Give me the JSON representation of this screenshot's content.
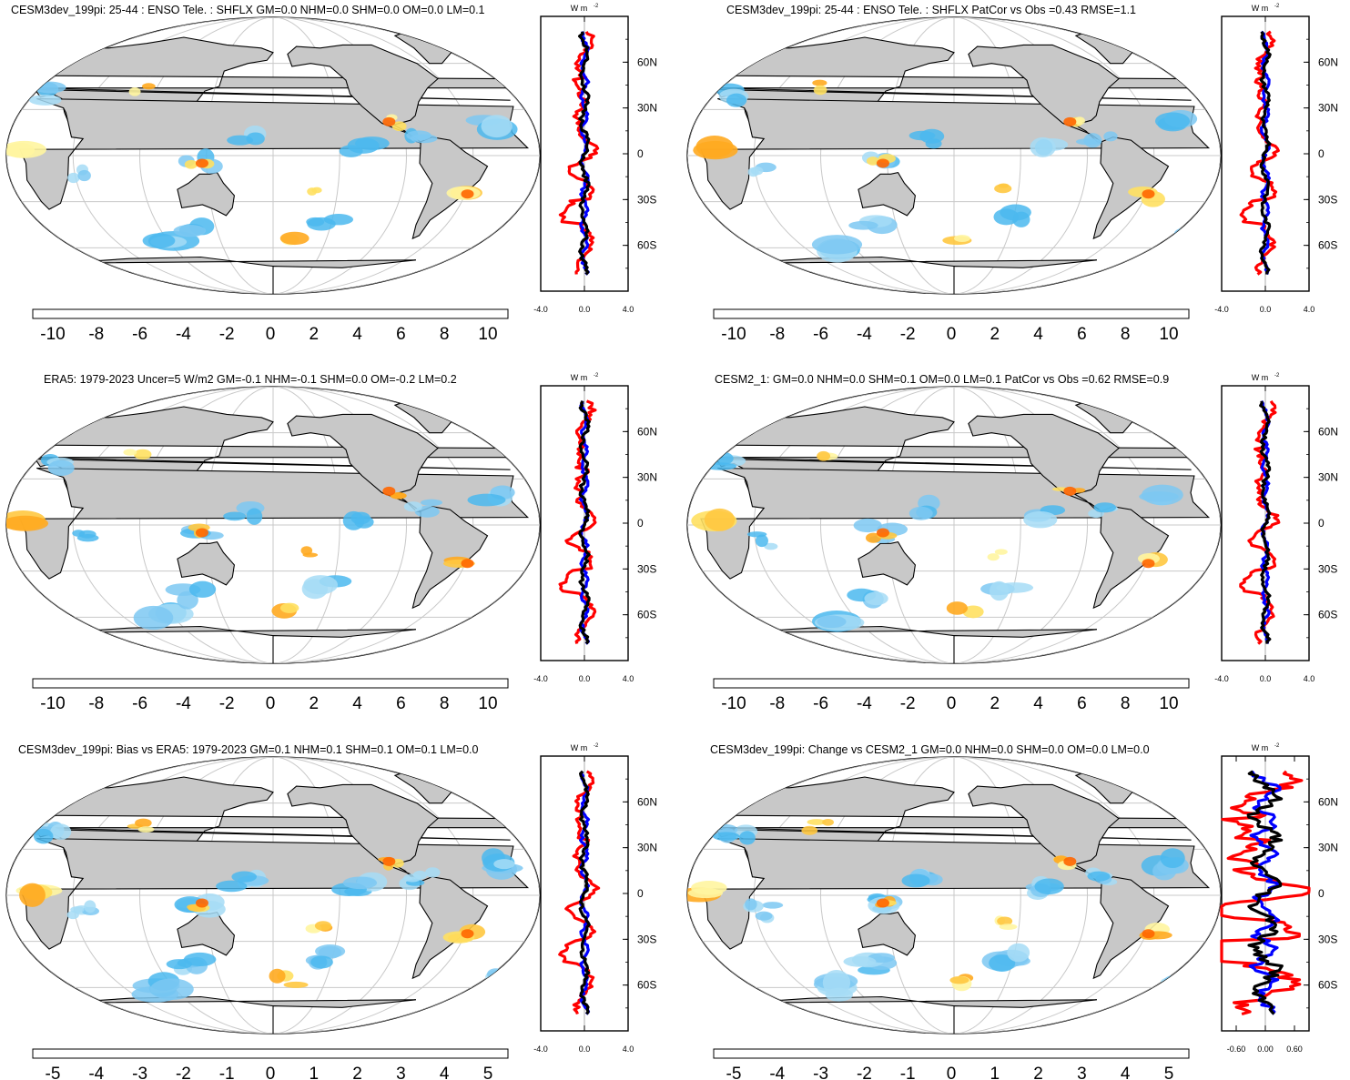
{
  "colors": {
    "land": "#c8c8c8",
    "ocean": "#ffffff",
    "grid": "#c8c8c8",
    "zonal_lines": [
      "#ff0000",
      "#0000ff",
      "#000000"
    ],
    "full_scale": [
      "#0000ff",
      "#1f3fe0",
      "#2e5fd9",
      "#3b7fd6",
      "#2fa3e6",
      "#4bb8ef",
      "#7cc8f2",
      "#a6dcf6",
      "#ffffff",
      "#ffffff",
      "#fff5a0",
      "#ffe060",
      "#ffc840",
      "#ffaa20",
      "#ff8800",
      "#ff6600",
      "#f03a00",
      "#e01010",
      "#c00000"
    ]
  },
  "chart_data": [
    {
      "type": "map",
      "title": "CESM3dev_199pi: 25-44 : ENSO Tele. : SHFLX GM=0.0 NHM=0.0 SHM=0.0 OM=0.0 LM=0.1",
      "colorbar_ticks": [
        "-10",
        "-8",
        "-6",
        "-4",
        "-2",
        "0",
        "2",
        "4",
        "6",
        "8",
        "10"
      ],
      "zonal": {
        "units": "W m",
        "units_exp": "-2",
        "xlim": [
          -4,
          4
        ],
        "xticks": [
          "-4.0",
          "0.0",
          "4.0"
        ],
        "lat_ticks": [
          "60N",
          "30N",
          "0",
          "30S",
          "60S"
        ]
      }
    },
    {
      "type": "map",
      "title": "CESM3dev_199pi: 25-44 : ENSO Tele. : SHFLX PatCor vs Obs =0.43 RMSE=1.1",
      "colorbar_ticks": [
        "-10",
        "-8",
        "-6",
        "-4",
        "-2",
        "0",
        "2",
        "4",
        "6",
        "8",
        "10"
      ],
      "zonal": {
        "units": "W m",
        "units_exp": "-2",
        "xlim": [
          -4,
          4
        ],
        "xticks": [
          "-4.0",
          "0.0",
          "4.0"
        ],
        "lat_ticks": [
          "60N",
          "30N",
          "0",
          "30S",
          "60S"
        ]
      }
    },
    {
      "type": "map",
      "title": "ERA5: 1979-2023 Uncer=5 W/m2 GM=-0.1 NHM=-0.1 SHM=0.0 OM=-0.2 LM=0.2",
      "colorbar_ticks": [
        "-10",
        "-8",
        "-6",
        "-4",
        "-2",
        "0",
        "2",
        "4",
        "6",
        "8",
        "10"
      ],
      "zonal": {
        "units": "W m",
        "units_exp": "-2",
        "xlim": [
          -4,
          4
        ],
        "xticks": [
          "-4.0",
          "0.0",
          "4.0"
        ],
        "lat_ticks": [
          "60N",
          "30N",
          "0",
          "30S",
          "60S"
        ]
      }
    },
    {
      "type": "map",
      "title": "CESM2_1: GM=0.0 NHM=0.0 SHM=0.1 OM=0.0 LM=0.1 PatCor vs Obs =0.62 RMSE=0.9",
      "colorbar_ticks": [
        "-10",
        "-8",
        "-6",
        "-4",
        "-2",
        "0",
        "2",
        "4",
        "6",
        "8",
        "10"
      ],
      "zonal": {
        "units": "W m",
        "units_exp": "-2",
        "xlim": [
          -4,
          4
        ],
        "xticks": [
          "-4.0",
          "0.0",
          "4.0"
        ],
        "lat_ticks": [
          "60N",
          "30N",
          "0",
          "30S",
          "60S"
        ]
      }
    },
    {
      "type": "map",
      "title": "CESM3dev_199pi: Bias vs ERA5: 1979-2023 GM=0.1 NHM=0.1 SHM=0.1 OM=0.1 LM=0.0",
      "colorbar_ticks": [
        "-5",
        "-4",
        "-3",
        "-2",
        "-1",
        "0",
        "1",
        "2",
        "3",
        "4",
        "5"
      ],
      "zonal": {
        "units": "W m",
        "units_exp": "-2",
        "xlim": [
          -4,
          4
        ],
        "xticks": [
          "-4.0",
          "0.0",
          "4.0"
        ],
        "lat_ticks": [
          "60N",
          "30N",
          "0",
          "30S",
          "60S"
        ]
      }
    },
    {
      "type": "map",
      "title": "CESM3dev_199pi: Change vs CESM2_1 GM=0.0 NHM=0.0 SHM=0.0 OM=0.0 LM=0.0",
      "colorbar_ticks": [
        "-5",
        "-4",
        "-3",
        "-2",
        "-1",
        "0",
        "1",
        "2",
        "3",
        "4",
        "5"
      ],
      "zonal": {
        "units": "W m",
        "units_exp": "-2",
        "xlim": [
          -0.9,
          0.9
        ],
        "xticks": [
          "-0.60",
          "0.00",
          "0.60"
        ],
        "lat_ticks": [
          "60N",
          "30N",
          "0",
          "30S",
          "60S"
        ]
      }
    }
  ]
}
